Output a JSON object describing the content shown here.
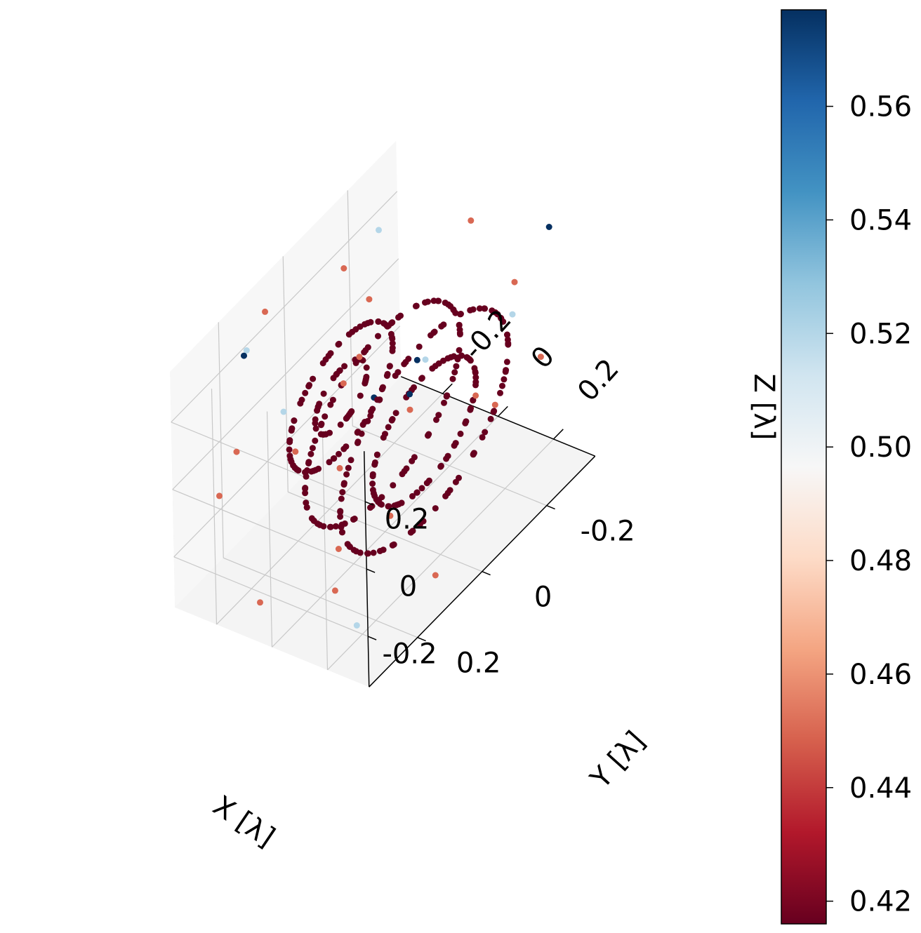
{
  "chart_data": {
    "type": "scatter",
    "projection": "3d",
    "title": "",
    "xlabel": "X [λ]",
    "ylabel": "Y [λ]",
    "zlabel": "Z [λ]",
    "xticks": [
      "-0.2",
      "0",
      "0.2"
    ],
    "yticks": [
      "-0.2",
      "0",
      "0.2"
    ],
    "zticks": [
      "-0.2",
      "0",
      "0.2"
    ],
    "xlim": [
      -0.35,
      0.35
    ],
    "ylim": [
      -0.35,
      0.35
    ],
    "zlim": [
      -0.35,
      0.35
    ],
    "grid": true,
    "colormap": "RdBu",
    "colorbar": {
      "min": 0.416,
      "max": 0.577,
      "ticks": [
        "0.42",
        "0.44",
        "0.46",
        "0.48",
        "0.50",
        "0.52",
        "0.54",
        "0.56"
      ],
      "colors": [
        "#67001f",
        "#b2182b",
        "#d6604d",
        "#f4a582",
        "#fddbc7",
        "#f7f7f7",
        "#d1e5f0",
        "#92c5de",
        "#4393c3",
        "#2166ac",
        "#053061"
      ]
    },
    "series": [
      {
        "description": "Concentric rings in the Y-Z plane at several X positions",
        "rings": [
          {
            "x": -0.15,
            "radius": 0.08,
            "value": 0.416,
            "points": 40
          },
          {
            "x": -0.15,
            "radius": 0.16,
            "value": 0.416,
            "points": 70
          },
          {
            "x": 0.0,
            "radius": 0.24,
            "value": 0.416,
            "points": 90
          },
          {
            "x": 0.15,
            "radius": 0.16,
            "value": 0.416,
            "points": 70
          },
          {
            "x": 0.15,
            "radius": 0.26,
            "value": 0.416,
            "points": 90
          }
        ]
      },
      {
        "description": "Scattered outer points",
        "points": [
          [
            -0.3,
            0.1,
            0.3,
            0.45
          ],
          [
            0.25,
            -0.2,
            0.28,
            0.45
          ],
          [
            0.1,
            0.2,
            0.32,
            0.45
          ],
          [
            -0.2,
            -0.25,
            -0.3,
            0.45
          ],
          [
            0.3,
            0.1,
            -0.28,
            0.45
          ],
          [
            -0.1,
            0.3,
            -0.3,
            0.45
          ],
          [
            0.2,
            0.3,
            0.2,
            0.45
          ],
          [
            -0.25,
            -0.1,
            0.25,
            0.45
          ],
          [
            0.05,
            -0.3,
            -0.25,
            0.45
          ],
          [
            -0.3,
            0.25,
            -0.1,
            0.45
          ],
          [
            0.28,
            -0.05,
            0.1,
            0.45
          ],
          [
            -0.05,
            0.1,
            -0.32,
            0.45
          ],
          [
            0.15,
            0.28,
            -0.2,
            0.45
          ],
          [
            -0.28,
            -0.2,
            0.05,
            0.45
          ],
          [
            0.32,
            0.25,
            0.05,
            0.45
          ],
          [
            -0.15,
            0.32,
            0.15,
            0.45
          ],
          [
            0.0,
            -0.28,
            0.3,
            0.45
          ],
          [
            0.22,
            -0.3,
            -0.05,
            0.45
          ],
          [
            -0.32,
            0.0,
            -0.22,
            0.45
          ],
          [
            0.1,
            0.15,
            0.35,
            0.45
          ],
          [
            -0.25,
            0.2,
            0.3,
            0.52
          ],
          [
            0.3,
            -0.15,
            0.25,
            0.52
          ],
          [
            -0.2,
            -0.3,
            -0.2,
            0.52
          ],
          [
            0.25,
            0.3,
            -0.25,
            0.52
          ],
          [
            0.0,
            0.3,
            0.3,
            0.52
          ],
          [
            -0.3,
            -0.25,
            0.2,
            0.52
          ],
          [
            -0.2,
            0.25,
            0.35,
            0.577
          ],
          [
            0.28,
            0.15,
            0.3,
            0.577
          ],
          [
            -0.15,
            -0.1,
            -0.1,
            0.577
          ],
          [
            0.2,
            -0.35,
            0.28,
            0.577
          ],
          [
            -0.35,
            -0.4,
            -0.35,
            0.577
          ]
        ]
      }
    ]
  }
}
